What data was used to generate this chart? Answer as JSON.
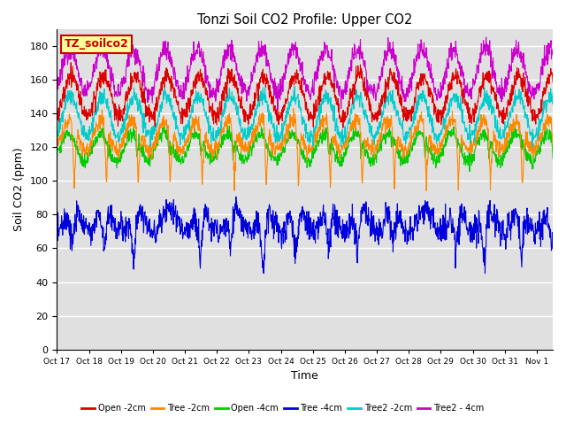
{
  "title": "Tonzi Soil CO2 Profile: Upper CO2",
  "xlabel": "Time",
  "ylabel": "Soil CO2 (ppm)",
  "ylim": [
    0,
    190
  ],
  "yticks": [
    0,
    20,
    40,
    60,
    80,
    100,
    120,
    140,
    160,
    180
  ],
  "xtick_labels": [
    "Oct 17",
    "Oct 18",
    "Oct 19",
    "Oct 20",
    "Oct 21",
    "Oct 22",
    "Oct 23",
    "Oct 24",
    "Oct 25",
    "Oct 26",
    "Oct 27",
    "Oct 28",
    "Oct 29",
    "Oct 30",
    "Oct 31",
    "Nov 1"
  ],
  "legend_label": "TZ_soilco2",
  "series": {
    "Open -2cm": {
      "color": "#dd0000"
    },
    "Tree -2cm": {
      "color": "#ff8800"
    },
    "Open -4cm": {
      "color": "#00cc00"
    },
    "Tree -4cm": {
      "color": "#0000dd"
    },
    "Tree2 -2cm": {
      "color": "#00cccc"
    },
    "Tree2 - 4cm": {
      "color": "#cc00cc"
    }
  },
  "background_color": "#ffffff",
  "plot_bg_color": "#e0e0e0",
  "grid_color": "#ffffff",
  "n_days": 15.5,
  "points_per_day": 96
}
